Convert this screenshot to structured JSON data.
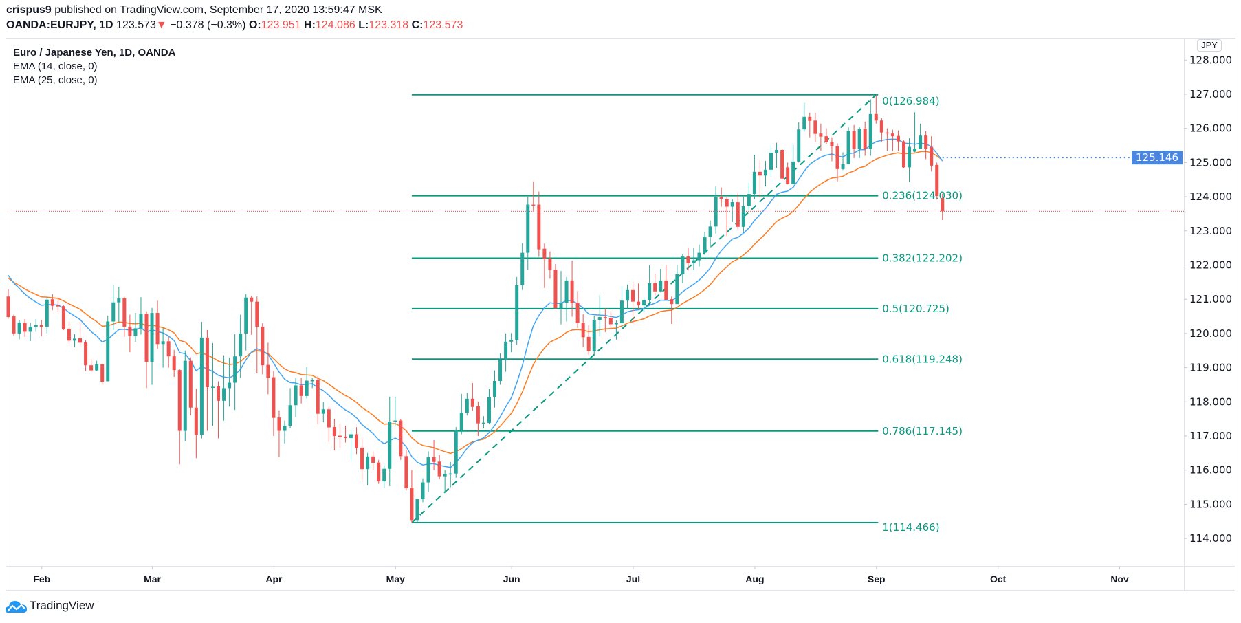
{
  "header": {
    "author": "crispus9",
    "published": "published on TradingView.com, September 17, 2020 13:59:47 MSK",
    "symbol": "OANDA:EURJPY, 1D",
    "last": "123.573",
    "change": "−0.378 (−0.3%)",
    "o_label": "O:",
    "o": "123.951",
    "h_label": "H:",
    "h": "124.086",
    "l_label": "L:",
    "l": "123.318",
    "c_label": "C:",
    "c": "123.573"
  },
  "legend": {
    "title": "Euro / Japanese Yen, 1D, OANDA",
    "ema1": "EMA (14, close, 0)",
    "ema2": "EMA (25, close, 0)"
  },
  "currency_button": "JPY",
  "logo_text": "TradingView",
  "colors": {
    "up": "#26a69a",
    "down": "#ef5350",
    "fib": "#089981",
    "ema14": "#42a5f5",
    "ema25": "#ff7b1f",
    "price_label": "#4a86e0"
  },
  "chart_data": {
    "type": "candlestick",
    "title": "Euro / Japanese Yen, 1D, OANDA",
    "ylim": [
      113.3,
      128.6
    ],
    "y_ticks": [
      "114.000",
      "115.000",
      "116.000",
      "117.000",
      "118.000",
      "119.000",
      "120.000",
      "121.000",
      "122.000",
      "123.000",
      "124.000",
      "125.000",
      "126.000",
      "127.000",
      "128.000"
    ],
    "x_ticks": [
      {
        "label": "Feb",
        "bar": 6
      },
      {
        "label": "Mar",
        "bar": 26
      },
      {
        "label": "Apr",
        "bar": 48
      },
      {
        "label": "May",
        "bar": 70
      },
      {
        "label": "Jun",
        "bar": 91
      },
      {
        "label": "Jul",
        "bar": 113
      },
      {
        "label": "Aug",
        "bar": 135
      },
      {
        "label": "Sep",
        "bar": 157
      },
      {
        "label": "Oct",
        "bar": 179
      },
      {
        "label": "Nov",
        "bar": 201
      }
    ],
    "ema_seed": {
      "ema14": 121.7,
      "ema25": 121.62
    },
    "ema14_last_label": "125.146",
    "current_price": 123.573,
    "fib": {
      "start_bar": 73,
      "end_bar": 157,
      "low": 114.466,
      "high": 126.984,
      "levels": [
        {
          "ratio": 0,
          "price": 126.984,
          "label": "0(126.984)"
        },
        {
          "ratio": 0.236,
          "price": 124.03,
          "label": "0.236(124.030)"
        },
        {
          "ratio": 0.382,
          "price": 122.202,
          "label": "0.382(122.202)"
        },
        {
          "ratio": 0.5,
          "price": 120.725,
          "label": "0.5(120.725)"
        },
        {
          "ratio": 0.618,
          "price": 119.248,
          "label": "0.618(119.248)"
        },
        {
          "ratio": 0.786,
          "price": 117.145,
          "label": "0.786(117.145)"
        },
        {
          "ratio": 1,
          "price": 114.466,
          "label": "1(114.466)"
        }
      ]
    },
    "ohlc": [
      [
        121.08,
        121.29,
        120.43,
        120.48
      ],
      [
        120.5,
        120.55,
        119.93,
        120.0
      ],
      [
        120.0,
        120.38,
        119.83,
        120.32
      ],
      [
        120.32,
        120.42,
        119.9,
        120.05
      ],
      [
        120.05,
        120.32,
        119.78,
        120.2
      ],
      [
        120.2,
        120.42,
        120.05,
        120.24
      ],
      [
        120.24,
        120.4,
        119.92,
        120.2
      ],
      [
        120.2,
        121.02,
        120.0,
        120.99
      ],
      [
        121.0,
        121.15,
        120.68,
        120.81
      ],
      [
        120.83,
        121.05,
        120.62,
        120.79
      ],
      [
        120.8,
        120.82,
        120.1,
        120.12
      ],
      [
        120.14,
        120.35,
        119.7,
        119.79
      ],
      [
        119.79,
        119.98,
        119.6,
        119.85
      ],
      [
        119.86,
        120.32,
        119.62,
        119.73
      ],
      [
        119.74,
        119.8,
        118.9,
        119.07
      ],
      [
        119.07,
        119.25,
        118.88,
        118.92
      ],
      [
        118.92,
        119.2,
        118.9,
        119.1
      ],
      [
        119.1,
        119.12,
        118.5,
        118.59
      ],
      [
        118.6,
        120.52,
        118.6,
        120.35
      ],
      [
        120.35,
        121.42,
        120.1,
        120.91
      ],
      [
        120.91,
        121.36,
        120.35,
        121.03
      ],
      [
        121.03,
        121.07,
        119.9,
        120.2
      ],
      [
        120.2,
        120.55,
        119.45,
        119.93
      ],
      [
        119.93,
        120.6,
        119.75,
        120.15
      ],
      [
        120.15,
        121.06,
        119.97,
        120.58
      ],
      [
        120.58,
        120.65,
        118.4,
        119.17
      ],
      [
        119.17,
        120.75,
        118.5,
        120.6
      ],
      [
        120.6,
        120.96,
        119.55,
        119.69
      ],
      [
        119.69,
        120.16,
        119.0,
        119.77
      ],
      [
        119.77,
        119.9,
        119.0,
        119.33
      ],
      [
        119.33,
        119.52,
        118.73,
        118.93
      ],
      [
        118.93,
        118.95,
        116.17,
        117.15
      ],
      [
        117.15,
        119.5,
        116.85,
        119.2
      ],
      [
        119.2,
        119.3,
        117.6,
        117.83
      ],
      [
        117.83,
        118.38,
        116.35,
        117.03
      ],
      [
        117.03,
        120.34,
        116.93,
        119.88
      ],
      [
        119.88,
        120.1,
        117.15,
        118.43
      ],
      [
        118.43,
        119.72,
        117.3,
        118.44
      ],
      [
        118.45,
        118.6,
        116.93,
        118.03
      ],
      [
        118.03,
        119.36,
        117.45,
        118.4
      ],
      [
        118.4,
        119.3,
        117.86,
        118.56
      ],
      [
        118.56,
        119.98,
        117.76,
        119.33
      ],
      [
        119.33,
        120.55,
        118.7,
        120.0
      ],
      [
        120.0,
        121.15,
        119.5,
        121.05
      ],
      [
        121.05,
        121.1,
        119.96,
        120.93
      ],
      [
        120.93,
        121.08,
        118.83,
        120.2
      ],
      [
        120.2,
        120.3,
        118.8,
        119.07
      ],
      [
        119.08,
        119.73,
        118.22,
        118.7
      ],
      [
        118.72,
        118.9,
        117.0,
        117.53
      ],
      [
        117.54,
        117.75,
        116.38,
        117.15
      ],
      [
        117.15,
        117.45,
        116.78,
        117.3
      ],
      [
        117.3,
        118.4,
        117.22,
        117.9
      ],
      [
        117.9,
        118.7,
        117.55,
        118.48
      ],
      [
        118.48,
        118.7,
        117.95,
        118.17
      ],
      [
        118.17,
        119.02,
        118.1,
        118.62
      ],
      [
        118.62,
        118.7,
        118.4,
        118.63
      ],
      [
        118.64,
        118.75,
        117.35,
        117.65
      ],
      [
        117.65,
        118.0,
        117.4,
        117.78
      ],
      [
        117.78,
        117.85,
        116.83,
        117.25
      ],
      [
        117.26,
        117.5,
        116.58,
        117.0
      ],
      [
        117.01,
        117.36,
        116.66,
        116.97
      ],
      [
        116.98,
        117.3,
        116.81,
        116.94
      ],
      [
        116.94,
        117.18,
        116.27,
        117.05
      ],
      [
        117.05,
        117.26,
        116.47,
        116.65
      ],
      [
        116.66,
        116.9,
        115.66,
        116.03
      ],
      [
        116.03,
        116.5,
        115.55,
        116.4
      ],
      [
        116.4,
        116.55,
        116.0,
        116.21
      ],
      [
        116.22,
        116.3,
        115.6,
        115.67
      ],
      [
        115.67,
        116.14,
        115.48,
        116.04
      ],
      [
        116.04,
        118.15,
        115.53,
        117.42
      ],
      [
        117.42,
        118.15,
        117.3,
        117.45
      ],
      [
        117.45,
        117.5,
        116.3,
        116.41
      ],
      [
        116.41,
        116.6,
        115.4,
        115.47
      ],
      [
        115.48,
        116.0,
        114.466,
        114.54
      ],
      [
        114.54,
        115.17,
        114.47,
        115.15
      ],
      [
        115.15,
        115.76,
        115.06,
        115.64
      ],
      [
        115.64,
        116.55,
        115.35,
        116.38
      ],
      [
        116.38,
        116.88,
        116.0,
        116.24
      ],
      [
        116.25,
        116.44,
        115.73,
        115.82
      ],
      [
        115.82,
        116.0,
        115.36,
        115.89
      ],
      [
        115.89,
        116.24,
        115.5,
        115.9
      ],
      [
        115.9,
        117.26,
        115.78,
        117.16
      ],
      [
        117.16,
        118.23,
        117.05,
        117.68
      ],
      [
        117.68,
        118.26,
        117.6,
        118.09
      ],
      [
        118.09,
        118.55,
        117.74,
        117.85
      ],
      [
        117.87,
        118.01,
        117.0,
        117.37
      ],
      [
        117.37,
        117.58,
        117.22,
        117.39
      ],
      [
        117.38,
        118.37,
        117.35,
        118.14
      ],
      [
        118.14,
        118.92,
        117.83,
        118.61
      ],
      [
        118.61,
        119.42,
        118.5,
        119.23
      ],
      [
        119.23,
        120.0,
        118.88,
        119.76
      ],
      [
        119.76,
        120.01,
        119.45,
        119.81
      ],
      [
        119.81,
        121.65,
        119.67,
        121.41
      ],
      [
        121.41,
        122.64,
        121.27,
        122.36
      ],
      [
        122.36,
        124.0,
        121.87,
        123.77
      ],
      [
        123.77,
        124.45,
        123.55,
        123.76
      ],
      [
        123.77,
        124.15,
        122.24,
        122.46
      ],
      [
        122.48,
        122.63,
        121.33,
        122.18
      ],
      [
        122.2,
        122.4,
        121.6,
        121.86
      ],
      [
        121.87,
        122.03,
        120.7,
        120.74
      ],
      [
        120.74,
        121.83,
        120.27,
        120.9
      ],
      [
        120.9,
        121.65,
        120.35,
        121.55
      ],
      [
        121.55,
        122.13,
        120.49,
        120.89
      ],
      [
        120.9,
        121.24,
        120.16,
        120.3
      ],
      [
        120.32,
        120.56,
        119.6,
        119.89
      ],
      [
        119.9,
        120.24,
        119.38,
        119.48
      ],
      [
        119.48,
        120.52,
        119.35,
        120.4
      ],
      [
        120.4,
        121.12,
        119.92,
        120.48
      ],
      [
        120.48,
        120.74,
        120.04,
        120.46
      ],
      [
        120.46,
        120.65,
        120.15,
        120.27
      ],
      [
        120.27,
        120.4,
        119.82,
        120.3
      ],
      [
        120.3,
        121.38,
        120.2,
        120.96
      ],
      [
        120.96,
        121.43,
        120.7,
        121.27
      ],
      [
        121.27,
        121.51,
        120.28,
        120.93
      ],
      [
        120.93,
        121.46,
        120.7,
        120.82
      ],
      [
        120.82,
        121.05,
        120.64,
        120.98
      ],
      [
        120.98,
        121.99,
        120.9,
        121.47
      ],
      [
        121.47,
        121.73,
        121.1,
        121.23
      ],
      [
        121.23,
        121.89,
        121.2,
        121.55
      ],
      [
        121.55,
        121.99,
        120.98,
        120.98
      ],
      [
        121.0,
        121.08,
        120.28,
        120.86
      ],
      [
        120.86,
        122.0,
        120.86,
        121.73
      ],
      [
        121.73,
        122.33,
        121.47,
        122.25
      ],
      [
        122.25,
        122.51,
        121.84,
        122.05
      ],
      [
        122.05,
        122.5,
        121.85,
        122.14
      ],
      [
        122.14,
        122.6,
        121.96,
        122.36
      ],
      [
        122.36,
        122.97,
        122.3,
        122.82
      ],
      [
        122.82,
        123.3,
        122.5,
        123.13
      ],
      [
        123.13,
        124.3,
        122.92,
        124.0
      ],
      [
        124.0,
        124.27,
        123.71,
        123.94
      ],
      [
        123.94,
        124.0,
        122.85,
        123.71
      ],
      [
        123.71,
        123.93,
        123.26,
        123.84
      ],
      [
        123.84,
        124.1,
        123.05,
        123.12
      ],
      [
        123.12,
        124.0,
        122.95,
        123.72
      ],
      [
        123.72,
        124.4,
        123.6,
        124.08
      ],
      [
        124.08,
        125.23,
        123.93,
        124.73
      ],
      [
        124.73,
        125.06,
        124.0,
        124.62
      ],
      [
        124.62,
        125.05,
        124.3,
        124.79
      ],
      [
        124.79,
        125.5,
        124.6,
        125.29
      ],
      [
        125.29,
        125.58,
        124.84,
        125.37
      ],
      [
        125.37,
        125.4,
        124.5,
        124.53
      ],
      [
        124.86,
        125.0,
        124.36,
        124.37
      ],
      [
        124.37,
        125.52,
        124.37,
        125.03
      ],
      [
        125.03,
        126.18,
        125.0,
        125.97
      ],
      [
        125.97,
        126.75,
        125.9,
        126.34
      ],
      [
        126.34,
        126.46,
        125.74,
        126.22
      ],
      [
        126.23,
        126.46,
        125.6,
        125.84
      ],
      [
        125.85,
        126.14,
        125.35,
        125.76
      ],
      [
        125.77,
        126.0,
        125.55,
        125.6
      ],
      [
        125.6,
        125.74,
        125.04,
        125.48
      ],
      [
        125.48,
        125.56,
        124.45,
        124.81
      ],
      [
        124.81,
        125.3,
        124.78,
        124.95
      ],
      [
        124.95,
        126.03,
        124.95,
        125.92
      ],
      [
        125.92,
        126.1,
        125.13,
        125.4
      ],
      [
        125.4,
        126.03,
        125.13,
        125.99
      ],
      [
        125.99,
        126.2,
        125.2,
        125.4
      ],
      [
        125.4,
        126.85,
        125.2,
        126.42
      ],
      [
        126.42,
        126.984,
        126.14,
        126.23
      ],
      [
        126.23,
        126.3,
        125.6,
        125.88
      ],
      [
        125.88,
        126.0,
        125.34,
        125.86
      ],
      [
        125.85,
        125.96,
        125.34,
        125.77
      ],
      [
        125.78,
        125.94,
        125.34,
        125.62
      ],
      [
        125.62,
        125.65,
        124.83,
        124.86
      ],
      [
        124.86,
        125.72,
        124.43,
        125.46
      ],
      [
        125.32,
        126.47,
        125.3,
        125.41
      ],
      [
        125.4,
        126.14,
        125.4,
        125.79
      ],
      [
        125.79,
        125.92,
        125.1,
        125.41
      ],
      [
        125.46,
        125.77,
        124.74,
        124.91
      ],
      [
        124.93,
        125.0,
        123.92,
        124.02
      ],
      [
        123.951,
        124.086,
        123.318,
        123.573
      ]
    ]
  }
}
